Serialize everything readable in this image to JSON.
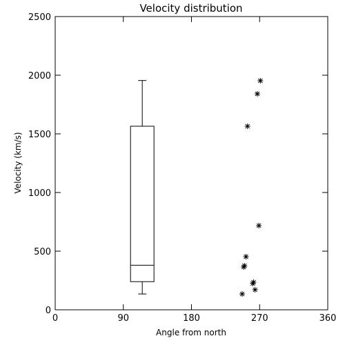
{
  "chart_data": {
    "type": "box",
    "title": "Velocity distribution",
    "x_label": "Angle from north",
    "y_label": "Velocity (km/s)",
    "xlim": [
      0,
      360
    ],
    "xticks": [
      0,
      90,
      180,
      270,
      360
    ],
    "ylim": [
      0,
      2500
    ],
    "yticks": [
      0,
      500,
      1000,
      1500,
      2000,
      2500
    ],
    "color": "#000000",
    "box": {
      "x": 115,
      "whisker_low": 135,
      "q1": 240,
      "median": 380,
      "q3": 1565,
      "whisker_high": 1955
    },
    "points": {
      "x": [
        271,
        267,
        254,
        269,
        252,
        250,
        249,
        262,
        261,
        264,
        247
      ],
      "y": [
        1953,
        1841,
        1565,
        718,
        453,
        376,
        365,
        235,
        224,
        171,
        135
      ]
    }
  }
}
